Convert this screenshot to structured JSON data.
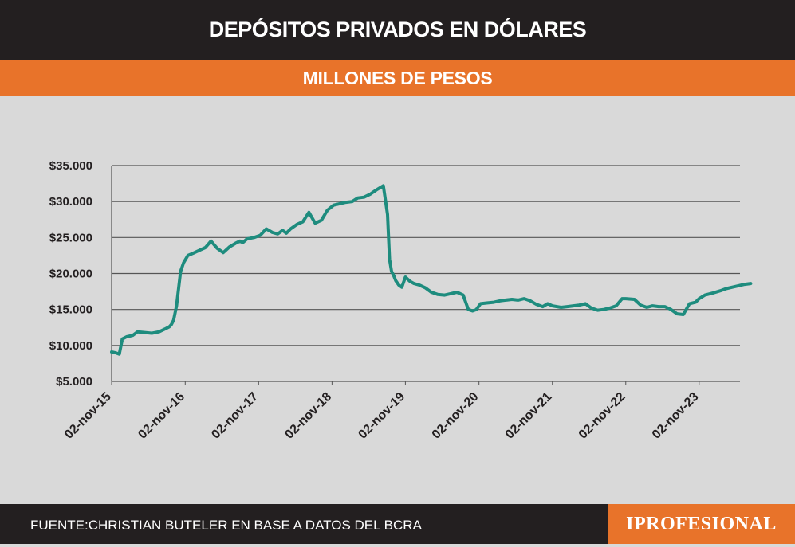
{
  "header": {
    "title": "DEPÓSITOS PRIVADOS EN DÓLARES"
  },
  "subheader": {
    "subtitle": "MILLONES DE PESOS"
  },
  "footer": {
    "source": "FUENTE:CHRISTIAN BUTELER EN BASE A DATOS DEL BCRA",
    "logo_text": "IPROFESIONAL"
  },
  "colors": {
    "line": "#1e8c7e",
    "title_bg": "#231f20",
    "accent": "#e8732a",
    "plot_bg": "#d9d9d9",
    "grid": "#555555"
  },
  "chart_data": {
    "type": "line",
    "title": "DEPÓSITOS PRIVADOS EN DÓLARES",
    "subtitle": "MILLONES DE PESOS",
    "xlabel": "",
    "ylabel": "",
    "ylim": [
      5000,
      35000
    ],
    "yticks": [
      5000,
      10000,
      15000,
      20000,
      25000,
      30000,
      35000
    ],
    "ytick_labels": [
      "$5.000",
      "$10.000",
      "$15.000",
      "$20.000",
      "$25.000",
      "$30.000",
      "$35.000"
    ],
    "xtick_labels": [
      "02-nov-15",
      "02-nov-16",
      "02-nov-17",
      "02-nov-18",
      "02-nov-19",
      "02-nov-20",
      "02-nov-21",
      "02-nov-22",
      "02-nov-23"
    ],
    "xticks": [
      "2015-11-02",
      "2016-11-02",
      "2017-11-02",
      "2018-11-02",
      "2019-11-02",
      "2020-11-02",
      "2021-11-02",
      "2022-11-02",
      "2023-11-02"
    ],
    "xlim": [
      "2015-11-02",
      "2024-07-15"
    ],
    "grid": true,
    "series": [
      {
        "x": [
          "2015-11-02",
          "2015-11-20",
          "2015-12-10",
          "2015-12-25",
          "2016-01-15",
          "2016-02-15",
          "2016-03-10",
          "2016-04-15",
          "2016-05-20",
          "2016-06-25",
          "2016-07-25",
          "2016-08-15",
          "2016-08-25",
          "2016-09-05",
          "2016-09-20",
          "2016-10-10",
          "2016-10-25",
          "2016-11-15",
          "2016-12-10",
          "2017-01-10",
          "2017-01-25",
          "2017-02-10",
          "2017-03-10",
          "2017-04-10",
          "2017-05-10",
          "2017-06-10",
          "2017-07-10",
          "2017-08-01",
          "2017-08-15",
          "2017-09-05",
          "2017-10-10",
          "2017-11-10",
          "2017-12-10",
          "2018-01-10",
          "2018-02-05",
          "2018-03-01",
          "2018-03-20",
          "2018-04-10",
          "2018-05-10",
          "2018-06-10",
          "2018-07-10",
          "2018-08-10",
          "2018-09-10",
          "2018-10-10",
          "2018-11-10",
          "2018-12-10",
          "2019-01-10",
          "2019-02-10",
          "2019-03-10",
          "2019-04-10",
          "2019-05-10",
          "2019-06-10",
          "2019-07-15",
          "2019-08-05",
          "2019-08-15",
          "2019-08-25",
          "2019-09-05",
          "2019-09-15",
          "2019-09-30",
          "2019-10-15",
          "2019-11-02",
          "2019-11-25",
          "2019-12-15",
          "2020-01-10",
          "2020-02-10",
          "2020-03-10",
          "2020-04-10",
          "2020-05-15",
          "2020-06-15",
          "2020-07-15",
          "2020-08-15",
          "2020-09-10",
          "2020-10-01",
          "2020-10-20",
          "2020-11-10",
          "2020-12-10",
          "2021-01-15",
          "2021-02-15",
          "2021-03-15",
          "2021-04-15",
          "2021-05-15",
          "2021-06-15",
          "2021-07-15",
          "2021-08-15",
          "2021-09-15",
          "2021-10-10",
          "2021-11-02",
          "2021-12-15",
          "2022-01-15",
          "2022-02-15",
          "2022-03-15",
          "2022-04-15",
          "2022-05-15",
          "2022-06-15",
          "2022-07-15",
          "2022-08-15",
          "2022-09-15",
          "2022-10-15",
          "2022-11-02",
          "2022-12-15",
          "2023-01-15",
          "2023-02-15",
          "2023-03-15",
          "2023-04-15",
          "2023-05-15",
          "2023-06-15",
          "2023-07-15",
          "2023-08-15",
          "2023-09-15",
          "2023-10-15",
          "2023-11-02",
          "2023-12-01",
          "2024-01-10",
          "2024-02-15",
          "2024-03-15",
          "2024-04-15",
          "2024-05-15",
          "2024-06-15",
          "2024-07-15"
        ],
        "values": [
          9100,
          9000,
          8800,
          10900,
          11200,
          11400,
          11900,
          11800,
          11700,
          11900,
          12300,
          12600,
          12900,
          13500,
          15500,
          20300,
          21500,
          22500,
          22800,
          23200,
          23400,
          23600,
          24500,
          23500,
          22900,
          23700,
          24200,
          24500,
          24300,
          24800,
          25000,
          25300,
          26200,
          25700,
          25500,
          26000,
          25600,
          26200,
          26800,
          27200,
          28500,
          27000,
          27400,
          28800,
          29500,
          29700,
          29900,
          30000,
          30500,
          30600,
          31000,
          31600,
          32200,
          28200,
          22000,
          20300,
          19700,
          19000,
          18400,
          18100,
          19500,
          18900,
          18600,
          18400,
          18000,
          17400,
          17100,
          17000,
          17200,
          17400,
          17000,
          15000,
          14800,
          15000,
          15800,
          15900,
          16000,
          16200,
          16300,
          16400,
          16300,
          16500,
          16200,
          15700,
          15400,
          15800,
          15500,
          15300,
          15400,
          15500,
          15600,
          15800,
          15200,
          14900,
          15000,
          15200,
          15500,
          16500,
          16500,
          16400,
          15600,
          15300,
          15500,
          15400,
          15400,
          15000,
          14400,
          14300,
          15800,
          16000,
          16500,
          17000,
          17300,
          17600,
          17900,
          18100,
          18300,
          18500,
          18600
        ]
      }
    ]
  }
}
